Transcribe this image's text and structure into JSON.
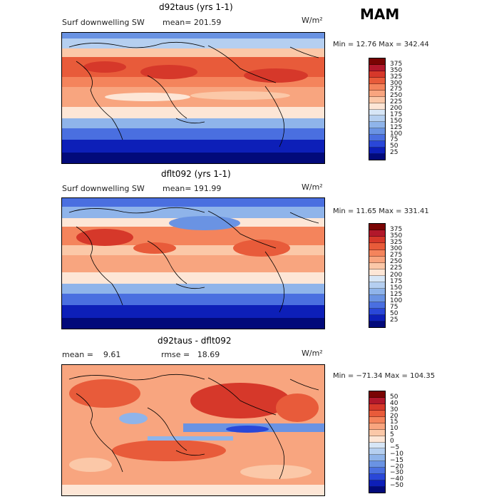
{
  "season": "MAM",
  "panels": [
    {
      "title": "d92taus (yrs 1-1)",
      "subtitle": "Surf downwelling SW",
      "mean": "mean= 201.59",
      "units": "W/m²",
      "minmax": "Min =  12.76 Max = 342.44",
      "colorbar": {
        "labels": [
          "375",
          "350",
          "325",
          "300",
          "275",
          "250",
          "225",
          "200",
          "175",
          "150",
          "125",
          "100",
          "75",
          "50",
          "25"
        ],
        "colors": [
          "#7a0403",
          "#b2182b",
          "#d6382a",
          "#e85b3a",
          "#f4845c",
          "#f8a57f",
          "#fbc8a8",
          "#fde6d6",
          "#d7e6f6",
          "#b5cff0",
          "#8fb4ea",
          "#6a93e3",
          "#4a6fe0",
          "#2a47d8",
          "#0d1fb8",
          "#020a7a"
        ]
      }
    },
    {
      "title": "dflt092 (yrs 1-1)",
      "subtitle": "Surf downwelling SW",
      "mean": "mean= 191.99",
      "units": "W/m²",
      "minmax": "Min =  11.65 Max = 331.41",
      "colorbar": {
        "labels": [
          "375",
          "350",
          "325",
          "300",
          "275",
          "250",
          "225",
          "200",
          "175",
          "150",
          "125",
          "100",
          "75",
          "50",
          "25"
        ],
        "colors": [
          "#7a0403",
          "#b2182b",
          "#d6382a",
          "#e85b3a",
          "#f4845c",
          "#f8a57f",
          "#fbc8a8",
          "#fde6d6",
          "#d7e6f6",
          "#b5cff0",
          "#8fb4ea",
          "#6a93e3",
          "#4a6fe0",
          "#2a47d8",
          "#0d1fb8",
          "#020a7a"
        ]
      }
    },
    {
      "title": "d92taus - dflt092",
      "mean": "mean =    9.61",
      "rmse": "rmse =   18.69",
      "units": "W/m²",
      "minmax": "Min = −71.34 Max = 104.35",
      "colorbar": {
        "labels": [
          "50",
          "40",
          "30",
          "20",
          "15",
          "10",
          "5",
          "0",
          "−5",
          "−10",
          "−15",
          "−20",
          "−30",
          "−40",
          "−50"
        ],
        "colors": [
          "#7a0403",
          "#b2182b",
          "#d6382a",
          "#e85b3a",
          "#f4845c",
          "#f8a57f",
          "#fbc8a8",
          "#fde6d6",
          "#d7e6f6",
          "#b5cff0",
          "#8fb4ea",
          "#6a93e3",
          "#4a6fe0",
          "#2a47d8",
          "#0d1fb8",
          "#020a7a"
        ]
      }
    }
  ]
}
